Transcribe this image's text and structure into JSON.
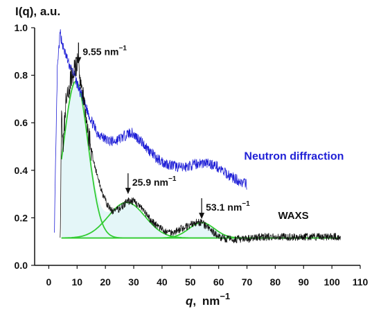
{
  "chart_data": {
    "type": "line",
    "ylabel": "I(q), a.u.",
    "xlabel_var": "q",
    "xlabel_unit": "nm",
    "xlabel_exp": "−1",
    "xlim": [
      -5,
      110
    ],
    "ylim": [
      0.0,
      1.0
    ],
    "x_ticks": [
      0,
      10,
      20,
      30,
      40,
      50,
      60,
      70,
      80,
      90,
      100,
      110
    ],
    "y_ticks": [
      0.0,
      0.2,
      0.4,
      0.6,
      0.8,
      1.0
    ],
    "y_tick_labels": [
      "0.0",
      "0.2",
      "0.4",
      "0.6",
      "0.8",
      "1.0"
    ],
    "series": [
      {
        "name": "Neutron diffraction",
        "color": "#1f1fd6",
        "x": [
          2.0,
          3.0,
          4.0,
          5.0,
          7.0,
          9.0,
          11.0,
          13.0,
          15.0,
          17.0,
          20.0,
          23.0,
          26.0,
          29.0,
          32.0,
          35.0,
          38.0,
          41.0,
          44.0,
          47.0,
          50.0,
          53.0,
          56.0,
          59.0,
          62.0,
          65.0,
          68.0,
          70.0
        ],
        "y": [
          0.16,
          0.82,
          0.98,
          0.92,
          0.85,
          0.8,
          0.73,
          0.67,
          0.61,
          0.56,
          0.53,
          0.52,
          0.54,
          0.56,
          0.53,
          0.49,
          0.45,
          0.43,
          0.42,
          0.41,
          0.42,
          0.43,
          0.43,
          0.42,
          0.39,
          0.37,
          0.35,
          0.34
        ]
      },
      {
        "name": "WAXS",
        "color": "#111111",
        "x": [
          4.0,
          4.5,
          5.0,
          6.0,
          7.0,
          8.0,
          9.0,
          10.0,
          11.0,
          12.0,
          14.0,
          16.0,
          18.0,
          20.0,
          22.0,
          24.0,
          26.0,
          28.0,
          30.0,
          32.0,
          34.0,
          36.0,
          38.0,
          40.0,
          42.0,
          44.0,
          46.0,
          48.0,
          50.0,
          52.0,
          54.0,
          56.0,
          58.0,
          60.0,
          63.0,
          66.0,
          70.0,
          75.0,
          80.0,
          85.0,
          90.0,
          95.0,
          100.0,
          103.0
        ],
        "y": [
          0.1,
          0.62,
          0.5,
          0.68,
          0.72,
          0.8,
          0.82,
          0.85,
          0.8,
          0.72,
          0.55,
          0.43,
          0.34,
          0.27,
          0.23,
          0.23,
          0.25,
          0.27,
          0.27,
          0.25,
          0.22,
          0.19,
          0.17,
          0.15,
          0.14,
          0.14,
          0.15,
          0.16,
          0.17,
          0.18,
          0.18,
          0.16,
          0.14,
          0.12,
          0.11,
          0.11,
          0.11,
          0.12,
          0.12,
          0.12,
          0.12,
          0.12,
          0.12,
          0.12
        ]
      }
    ],
    "fits": [
      {
        "center": 9.55,
        "amplitude": 0.66,
        "sigma": 4.3
      },
      {
        "center": 27.5,
        "amplitude": 0.15,
        "sigma": 6.5
      },
      {
        "center": 54.0,
        "amplitude": 0.065,
        "sigma": 4.5
      }
    ],
    "fit_baseline": 0.115,
    "fit_range": [
      4.5,
      103
    ],
    "fit_color": "#33cc33",
    "fill_color": "#cdeef3",
    "annotations": [
      {
        "value": "9.55",
        "unit": "nm",
        "exp": "−1",
        "x": 10.5,
        "y": 0.85
      },
      {
        "value": "25.9",
        "unit": "nm",
        "exp": "−1",
        "x": 28.0,
        "y": 0.3
      },
      {
        "value": "53.1",
        "unit": "nm",
        "exp": "−1",
        "x": 54.0,
        "y": 0.195
      }
    ],
    "series_labels": [
      {
        "text": "Neutron diffraction",
        "color": "#1f1fd6",
        "x": 69,
        "y": 0.445
      },
      {
        "text": "WAXS",
        "color": "#111111",
        "x": 81,
        "y": 0.195
      }
    ]
  }
}
